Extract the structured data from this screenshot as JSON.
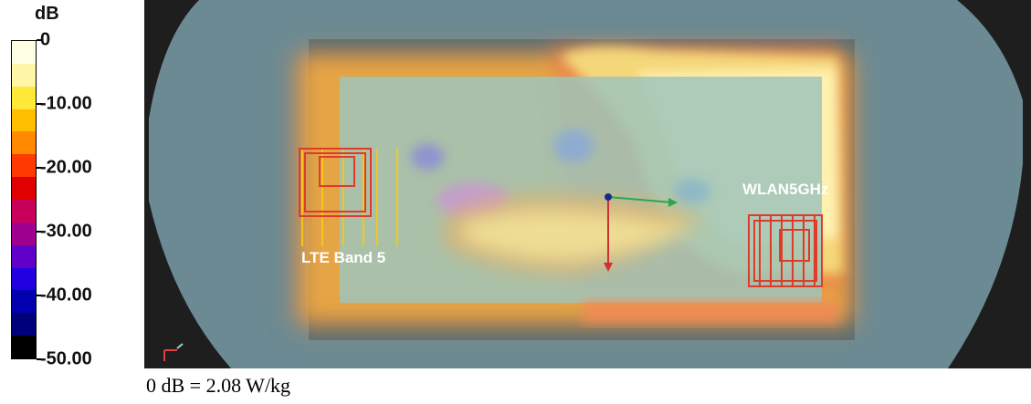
{
  "legend": {
    "unit": "dB",
    "ticks": [
      "0",
      "-10.00",
      "-20.00",
      "-30.00",
      "-40.00",
      "-50.00"
    ],
    "colors": [
      "#ffffe4",
      "#fff6a8",
      "#ffe838",
      "#ffbf00",
      "#ff8a00",
      "#ff3a00",
      "#e00000",
      "#c8005a",
      "#a00090",
      "#6000c8",
      "#2000e0",
      "#0000b0",
      "#00007a",
      "#000000"
    ]
  },
  "annotations": {
    "lte": "LTE Band 5",
    "wlan": "WLAN5GHz"
  },
  "footnote": "0 dB = 2.08 W/kg"
}
